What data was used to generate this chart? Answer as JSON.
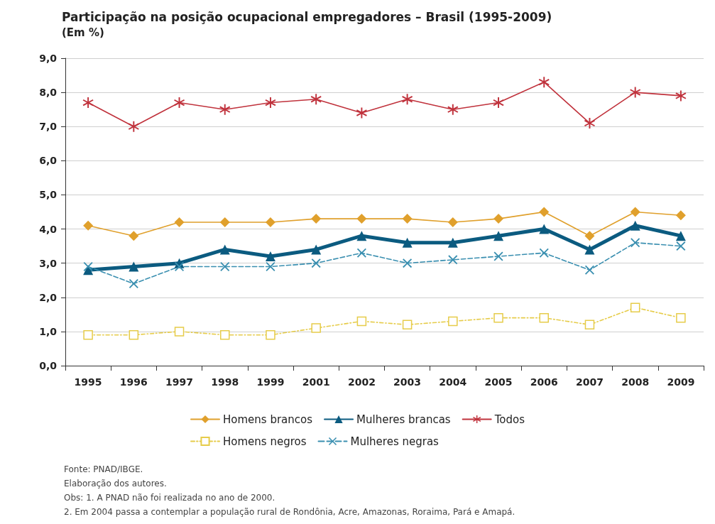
{
  "chart_data": {
    "type": "line",
    "title": "Participação na posição ocupacional empregadores – Brasil (1995-2009)",
    "subtitle": "(Em %)",
    "categories": [
      "1995",
      "1996",
      "1997",
      "1998",
      "1999",
      "2001",
      "2002",
      "2003",
      "2004",
      "2005",
      "2006",
      "2007",
      "2008",
      "2009"
    ],
    "series": [
      {
        "name": "Homens brancos",
        "color": "#e0a02c",
        "marker": "diamond",
        "line_style": "solid",
        "values": [
          4.1,
          3.8,
          4.2,
          4.2,
          4.2,
          4.3,
          4.3,
          4.3,
          4.2,
          4.3,
          4.5,
          3.8,
          4.5,
          4.4
        ]
      },
      {
        "name": "Mulheres brancas",
        "color": "#0b5b80",
        "marker": "triangle",
        "line_style": "solid",
        "values": [
          2.8,
          2.9,
          3.0,
          3.4,
          3.2,
          3.4,
          3.8,
          3.6,
          3.6,
          3.8,
          4.0,
          3.4,
          4.1,
          3.8
        ]
      },
      {
        "name": "Todos",
        "color": "#c0323c",
        "marker": "star",
        "line_style": "solid",
        "values": [
          7.7,
          7.0,
          7.7,
          7.5,
          7.7,
          7.8,
          7.4,
          7.8,
          7.5,
          7.7,
          8.3,
          7.1,
          8.0,
          7.9
        ]
      },
      {
        "name": "Homens negros",
        "color": "#e6cc4a",
        "marker": "square",
        "line_style": "dotted",
        "values": [
          0.9,
          0.9,
          1.0,
          0.9,
          0.9,
          1.1,
          1.3,
          1.2,
          1.3,
          1.4,
          1.4,
          1.2,
          1.7,
          1.4
        ]
      },
      {
        "name": "Mulheres negras",
        "color": "#3a8fb0",
        "marker": "cross",
        "line_style": "dashed",
        "values": [
          2.9,
          2.4,
          2.9,
          2.9,
          2.9,
          3.0,
          3.3,
          3.0,
          3.1,
          3.2,
          3.3,
          2.8,
          3.6,
          3.5
        ]
      }
    ],
    "ylim": [
      0,
      9
    ],
    "yticks": [
      {
        "value": 0,
        "label": "0,0"
      },
      {
        "value": 1,
        "label": "1,0"
      },
      {
        "value": 2,
        "label": "2,0"
      },
      {
        "value": 3,
        "label": "3,0"
      },
      {
        "value": 4,
        "label": "4,0"
      },
      {
        "value": 5,
        "label": "5,0"
      },
      {
        "value": 6,
        "label": "6,0"
      },
      {
        "value": 7,
        "label": "7,0"
      },
      {
        "value": 8,
        "label": "8,0"
      },
      {
        "value": 9,
        "label": "9,0"
      }
    ],
    "grid": "y",
    "legend": "bottom",
    "annotations": [
      "Fonte: PNAD/IBGE.",
      "Elaboração dos autores.",
      "Obs: 1. A PNAD não foi realizada no ano de 2000.",
      "2. Em 2004 passa a contemplar a população rural de Rondônia, Acre, Amazonas, Roraima, Pará e Amapá."
    ]
  }
}
